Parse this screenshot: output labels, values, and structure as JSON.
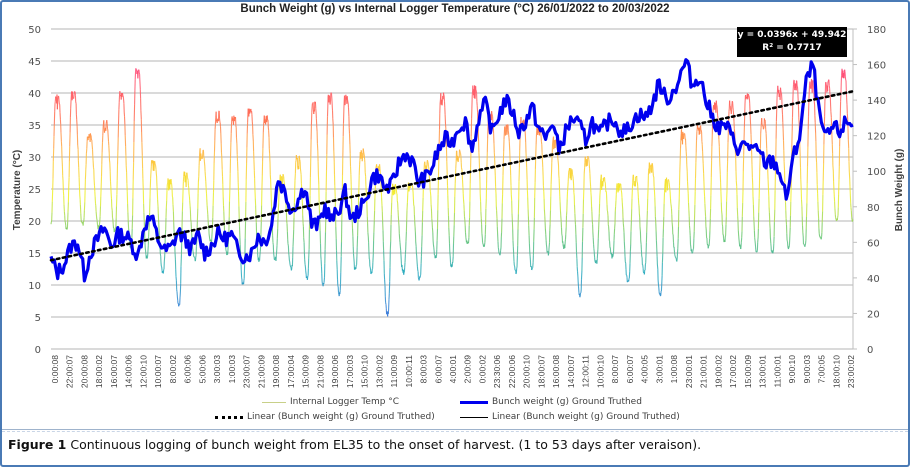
{
  "chart_data": {
    "type": "line",
    "title": "Bunch Weight (g) vs Internal Logger Temperature (°C)   26/01/2022 to 20/03/2022",
    "ylabel": "Temperature (°C)",
    "y2label": "Bunch Weight (g)",
    "ylim": [
      0,
      50
    ],
    "y2lim": [
      0,
      180
    ],
    "yticks": [
      "0",
      "5",
      "10",
      "15",
      "20",
      "25",
      "30",
      "35",
      "40",
      "45",
      "50"
    ],
    "y2ticks": [
      "0",
      "20",
      "40",
      "60",
      "80",
      "100",
      "120",
      "140",
      "160",
      "180"
    ],
    "grid": true,
    "x_tick_labels": [
      "0:00:08",
      "22:00:07",
      "20:00:08",
      "18:00:02",
      "16:00:07",
      "14:00:06",
      "12:00:10",
      "10:00:07",
      "8:00:02",
      "6:00:06",
      "5:00:06",
      "3:00:03",
      "1:00:03",
      "23:00:07",
      "21:00:09",
      "19:00:08",
      "17:00:04",
      "15:00:09",
      "21:00:08",
      "19:00:06",
      "17:00:03",
      "15:00:10",
      "13:00:02",
      "11:00:09",
      "10:00:11",
      "8:00:03",
      "6:00:07",
      "4:00:01",
      "2:00:09",
      "0:00:02",
      "23:30:06",
      "22:00:06",
      "20:00:10",
      "18:00:07",
      "16:00:08",
      "14:00:07",
      "12:00:11",
      "10:00:10",
      "8:00:07",
      "6:00:07",
      "4:00:05",
      "3:00:01",
      "1:00:08",
      "23:00:01",
      "21:00:01",
      "19:00:02",
      "17:00:02",
      "15:00:09",
      "13:00:01",
      "11:00:01",
      "9:00:10",
      "9:00:03",
      "7:00:05",
      "18:00:10",
      "23:00:02"
    ],
    "x_range": [
      0,
      2400
    ],
    "series": [
      {
        "name": "Internal Logger Temp °C",
        "axis": "left",
        "style": "thin line, color graded by value (blue low → green → yellow → red high)",
        "daily_peaks_C": [
          39.5,
          40.5,
          33.5,
          35.5,
          40,
          44,
          29.5,
          26.5,
          27.5,
          31,
          37,
          36.5,
          37.5,
          36.5,
          27,
          30,
          38.5,
          40,
          39.5,
          31,
          29,
          25.5,
          26,
          29.5,
          40,
          31,
          41,
          37,
          35,
          36,
          35,
          33,
          28,
          30,
          27,
          26,
          27,
          29,
          26.5,
          34,
          35,
          38.5,
          38.5,
          40,
          36,
          41,
          42,
          42,
          42,
          43.5
        ],
        "daily_troughs_C": [
          19.5,
          19,
          19.5,
          19,
          18.5,
          16,
          14.5,
          12,
          7,
          14,
          17,
          15,
          10,
          14,
          14,
          12.5,
          11,
          10,
          8.5,
          12.5,
          12,
          5.5,
          12,
          11,
          14.5,
          13,
          16.5,
          16,
          15,
          12,
          12.5,
          15,
          16,
          8.5,
          13.5,
          14.5,
          10.5,
          12,
          8.5,
          14,
          15,
          16,
          17,
          16,
          15.5,
          15,
          16,
          16,
          17,
          20
        ]
      },
      {
        "name": "Bunch weight (g) Ground Truthed",
        "axis": "right",
        "style": "thick blue line",
        "color": "#0000ee",
        "values_g": [
          50,
          43,
          48,
          58,
          60,
          42,
          55,
          62,
          68,
          58,
          64,
          64,
          60,
          52,
          70,
          74,
          62,
          55,
          57,
          66,
          62,
          56,
          64,
          54,
          58,
          65,
          62,
          64,
          55,
          52,
          54,
          64,
          60,
          70,
          96,
          88,
          78,
          84,
          92,
          70,
          70,
          80,
          72,
          78,
          88,
          72,
          78,
          82,
          96,
          98,
          90,
          92,
          104,
          110,
          106,
          94,
          96,
          102,
          112,
          118,
          116,
          125,
          128,
          112,
          130,
          138,
          122,
          132,
          140,
          134,
          122,
          128,
          136,
          124,
          118,
          128,
          112,
          122,
          130,
          126,
          118,
          128,
          120,
          126,
          130,
          124,
          122,
          128,
          132,
          130,
          138,
          150,
          140,
          144,
          152,
          162,
          148,
          154,
          140,
          130,
          124,
          126,
          118,
          112,
          116,
          112,
          110,
          104,
          106,
          100,
          84,
          106,
          120,
          150,
          160,
          130,
          118,
          125,
          122,
          128,
          126
        ]
      },
      {
        "name": "Linear (Bunch weight (g) Ground Truthed)",
        "axis": "right",
        "style": "dotted black trendline",
        "slope": 0.0396,
        "intercept": 49.942,
        "r2": 0.7717
      }
    ],
    "annotations": {
      "equation": "y = 0.0396x + 49.942",
      "r_squared": "R² = 0.7717"
    },
    "legend": {
      "placement": "bottom",
      "entries": [
        "Internal Logger Temp °C",
        "Bunch weight (g) Ground Truthed",
        "Linear (Bunch weight (g) Ground Truthed)",
        "Linear (Bunch weight (g) Ground Truthed)"
      ]
    }
  },
  "caption": {
    "label": "Figure 1",
    "text": " Continuous logging of bunch weight from EL35 to  the onset of harvest. (1 to 53 days after veraison)."
  },
  "colors": {
    "weight": "#0000ee",
    "trend": "#000000",
    "grid": "#bfbfbf",
    "frame": "#4a7ab5"
  }
}
